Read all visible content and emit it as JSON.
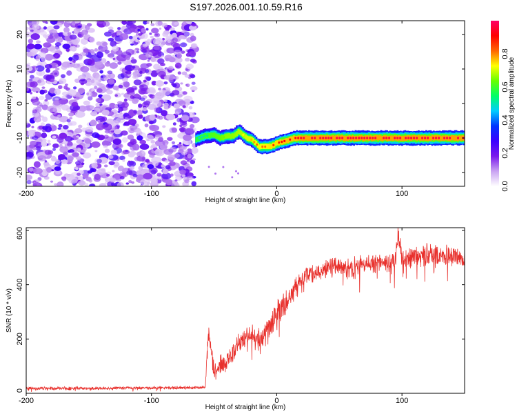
{
  "title": "S197.2026.001.10.59.R16",
  "chart_data": [
    {
      "type": "heatmap",
      "xlabel": "Height of straight line (km)",
      "ylabel": "Frequency (Hz)",
      "xlim": [
        -200,
        150
      ],
      "ylim": [
        -24,
        24
      ],
      "xticks": [
        -200,
        -100,
        0,
        100
      ],
      "yticks": [
        -20,
        -10,
        0,
        10,
        20
      ],
      "colorbar": {
        "label": "Normalized spectral amplitude",
        "range": [
          0,
          1
        ],
        "ticks": [
          "0.0",
          "0.2",
          "0.4",
          "0.6",
          "0.8"
        ],
        "colors": [
          "#ffffff",
          "#c9a3f2",
          "#7a1aec",
          "#3a00ff",
          "#0033ff",
          "#00ccff",
          "#00ff66",
          "#66ff00",
          "#ffff00",
          "#ff6600",
          "#ff0000",
          "#ff0066"
        ]
      },
      "noise_region_x": [
        -200,
        -65
      ],
      "noise_amplitude_range": [
        0.0,
        0.25
      ],
      "signal_track": {
        "x": [
          -65,
          -58,
          -50,
          -45,
          -40,
          -35,
          -30,
          -27,
          -24,
          -20,
          -17,
          -14,
          -10,
          -6,
          -2,
          0,
          5,
          10,
          15,
          20,
          30,
          50,
          70,
          80,
          90,
          100,
          120,
          140,
          150
        ],
        "frequency": [
          -10.5,
          -9.5,
          -9.0,
          -10.0,
          -9.5,
          -9.5,
          -8.0,
          -9.0,
          -10.0,
          -10.5,
          -11.5,
          -12.5,
          -12.5,
          -12.5,
          -12.0,
          -11.5,
          -11.0,
          -10.5,
          -10.0,
          -10.0,
          -10.0,
          -10.0,
          -10.0,
          -10.0,
          -10.0,
          -10.0,
          -10.0,
          -10.0,
          -10.0
        ],
        "peak_amplitude": [
          0.45,
          0.5,
          0.55,
          0.6,
          0.65,
          0.65,
          0.7,
          0.7,
          0.75,
          0.75,
          0.8,
          0.8,
          0.8,
          0.85,
          0.85,
          0.85,
          0.9,
          0.9,
          0.9,
          0.95,
          0.95,
          0.95,
          0.95,
          0.95,
          0.95,
          0.95,
          0.95,
          0.95,
          0.95
        ]
      }
    },
    {
      "type": "line",
      "xlabel": "Height of straight line (km)",
      "ylabel": "SNR (10 * v/v)",
      "xlim": [
        -200,
        150
      ],
      "ylim": [
        0,
        610
      ],
      "xticks": [
        -200,
        -100,
        0,
        100
      ],
      "yticks": [
        0,
        200,
        400,
        600
      ],
      "color": "#e8302c",
      "series": [
        {
          "x": [
            -200,
            -150,
            -100,
            -75,
            -57,
            -56,
            -54,
            -52,
            -50,
            -45,
            -40,
            -35,
            -30,
            -25,
            -20,
            -15,
            -10,
            -5,
            0,
            5,
            10,
            15,
            20,
            25,
            30,
            40,
            50,
            60,
            70,
            80,
            90,
            95,
            97,
            100,
            110,
            120,
            130,
            140,
            150
          ],
          "values": [
            18,
            18,
            20,
            20,
            22,
            120,
            230,
            150,
            85,
            100,
            120,
            150,
            180,
            200,
            215,
            200,
            200,
            250,
            290,
            320,
            350,
            390,
            420,
            440,
            440,
            460,
            470,
            460,
            480,
            480,
            480,
            500,
            580,
            490,
            500,
            510,
            505,
            505,
            505
          ],
          "noise": [
            6,
            6,
            6,
            6,
            6,
            60,
            60,
            50,
            40,
            40,
            40,
            40,
            40,
            45,
            45,
            55,
            55,
            55,
            55,
            55,
            45,
            40,
            35,
            35,
            35,
            35,
            35,
            40,
            40,
            40,
            40,
            45,
            45,
            45,
            40,
            40,
            40,
            40,
            40
          ]
        }
      ]
    }
  ]
}
